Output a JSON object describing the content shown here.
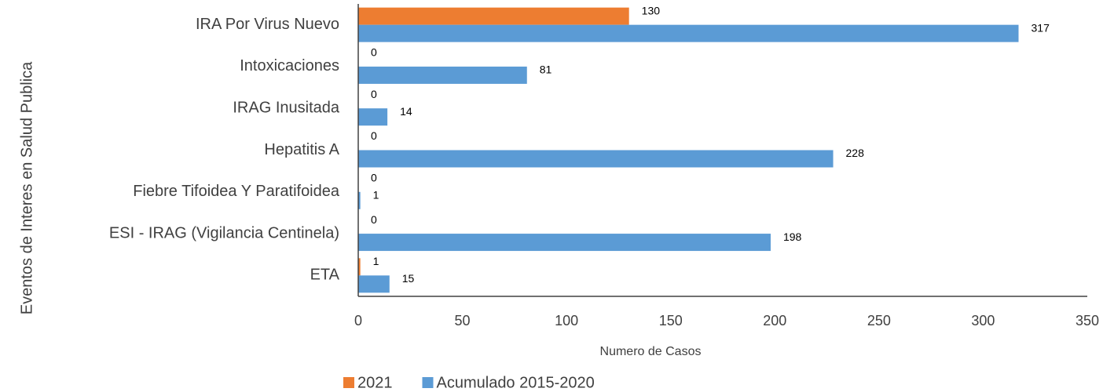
{
  "chart_data": {
    "type": "bar",
    "orientation": "horizontal",
    "x_label": "Numero de Casos",
    "y_label": "Eventos de Interes en Salud Publica",
    "categories": [
      "IRA Por Virus Nuevo",
      "Intoxicaciones",
      "IRAG Inusitada",
      "Hepatitis A",
      "Fiebre Tifoidea Y Paratifoidea",
      "ESI - IRAG (Vigilancia Centinela)",
      "ETA"
    ],
    "series": [
      {
        "name": "2021",
        "color": "#ed7d31",
        "values": [
          130,
          0,
          0,
          0,
          0,
          0,
          1
        ]
      },
      {
        "name": "Acumulado 2015-2020",
        "color": "#5b9bd5",
        "values": [
          317,
          81,
          14,
          228,
          1,
          198,
          15
        ]
      }
    ],
    "xlim": [
      0,
      350
    ],
    "xticks": [
      0,
      50,
      100,
      150,
      200,
      250,
      300,
      350
    ],
    "grid": false,
    "legend": "bottom"
  }
}
